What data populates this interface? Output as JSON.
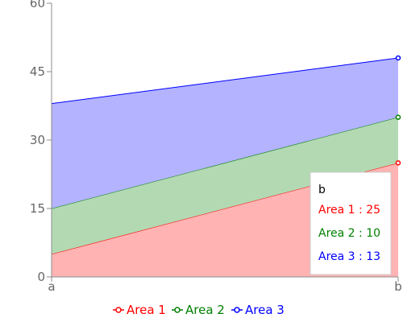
{
  "chart_data": {
    "type": "area",
    "stacked": true,
    "categories": [
      "a",
      "b"
    ],
    "series": [
      {
        "name": "Area 1",
        "values": [
          5,
          25
        ],
        "color": "#ff0000",
        "fill": "#ffb3b3"
      },
      {
        "name": "Area 2",
        "values": [
          10,
          10
        ],
        "color": "#008000",
        "fill": "#b3d9b3"
      },
      {
        "name": "Area 3",
        "values": [
          23,
          13
        ],
        "color": "#0000ff",
        "fill": "#b3b3ff"
      }
    ],
    "ylim": [
      0,
      60
    ],
    "yticks": [
      "0",
      "15",
      "30",
      "45",
      "60"
    ],
    "grid": false,
    "legend_position": "bottom",
    "tooltip": {
      "title": "b",
      "entries": [
        {
          "label": "Area 1 : 25",
          "color": "#ff0000"
        },
        {
          "label": "Area 2 : 10",
          "color": "#008000"
        },
        {
          "label": "Area 3 : 13",
          "color": "#0000ff"
        }
      ]
    }
  }
}
